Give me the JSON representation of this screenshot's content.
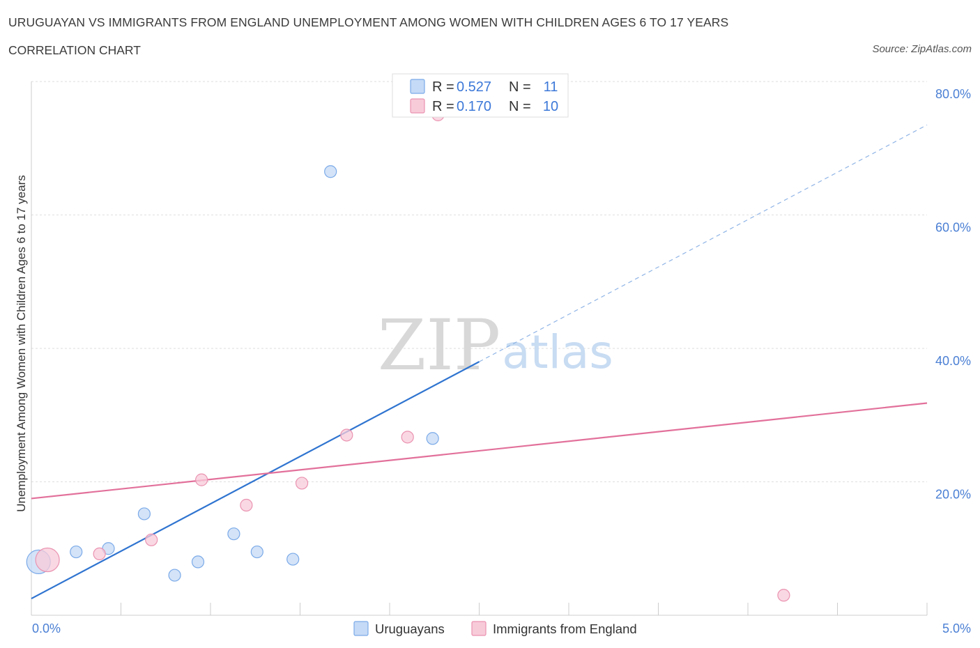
{
  "header": {
    "title": "URUGUAYAN VS IMMIGRANTS FROM ENGLAND UNEMPLOYMENT AMONG WOMEN WITH CHILDREN AGES 6 TO 17 YEARS",
    "subtitle": "CORRELATION CHART",
    "source": "Source: ZipAtlas.com"
  },
  "watermark": {
    "zip": "ZIP",
    "atlas": "atlas"
  },
  "chart_data": {
    "type": "scatter",
    "title": "URUGUAYAN VS IMMIGRANTS FROM ENGLAND UNEMPLOYMENT AMONG WOMEN WITH CHILDREN AGES 6 TO 17 YEARS",
    "xlabel": "",
    "ylabel": "Unemployment Among Women with Children Ages 6 to 17 years",
    "xlim": [
      0,
      5
    ],
    "ylim": [
      0,
      80
    ],
    "x_tick_labels": [
      "0.0%",
      "5.0%"
    ],
    "y_ticks": [
      20,
      40,
      60,
      80
    ],
    "y_tick_labels": [
      "20.0%",
      "40.0%",
      "60.0%",
      "80.0%"
    ],
    "grid": true,
    "legend_position": "top-center",
    "series": [
      {
        "name": "Uruguayans",
        "color": "#7aaae8",
        "fill": "#c5daf6",
        "R": "0.527",
        "N": "11",
        "points": [
          {
            "x": 0.04,
            "y": 8.0,
            "big": true
          },
          {
            "x": 0.25,
            "y": 9.5
          },
          {
            "x": 0.43,
            "y": 10.0
          },
          {
            "x": 0.63,
            "y": 15.2
          },
          {
            "x": 0.8,
            "y": 6.0
          },
          {
            "x": 0.93,
            "y": 8.0
          },
          {
            "x": 1.13,
            "y": 12.2
          },
          {
            "x": 1.26,
            "y": 9.5
          },
          {
            "x": 1.46,
            "y": 8.4
          },
          {
            "x": 1.67,
            "y": 66.5
          },
          {
            "x": 2.24,
            "y": 26.5
          }
        ],
        "trend": {
          "x0": 0.0,
          "y0": 2.5,
          "x_solid_end": 2.5,
          "x1": 5.0,
          "y1": 73.5
        }
      },
      {
        "name": "Immigrants from England",
        "color": "#ea92b0",
        "fill": "#f8cbd9",
        "R": "0.170",
        "N": "10",
        "points": [
          {
            "x": 0.09,
            "y": 8.3,
            "big": true
          },
          {
            "x": 0.38,
            "y": 9.2
          },
          {
            "x": 0.67,
            "y": 11.3
          },
          {
            "x": 0.95,
            "y": 20.3
          },
          {
            "x": 1.2,
            "y": 16.5
          },
          {
            "x": 1.51,
            "y": 19.8
          },
          {
            "x": 1.76,
            "y": 27.0
          },
          {
            "x": 2.1,
            "y": 26.7
          },
          {
            "x": 2.27,
            "y": 75.0
          },
          {
            "x": 4.2,
            "y": 3.0
          }
        ],
        "trend": {
          "x0": 0.0,
          "y0": 17.5,
          "x1": 5.0,
          "y1": 31.8
        }
      }
    ]
  },
  "legend": {
    "r_label": "R =",
    "n_label": "N ="
  }
}
